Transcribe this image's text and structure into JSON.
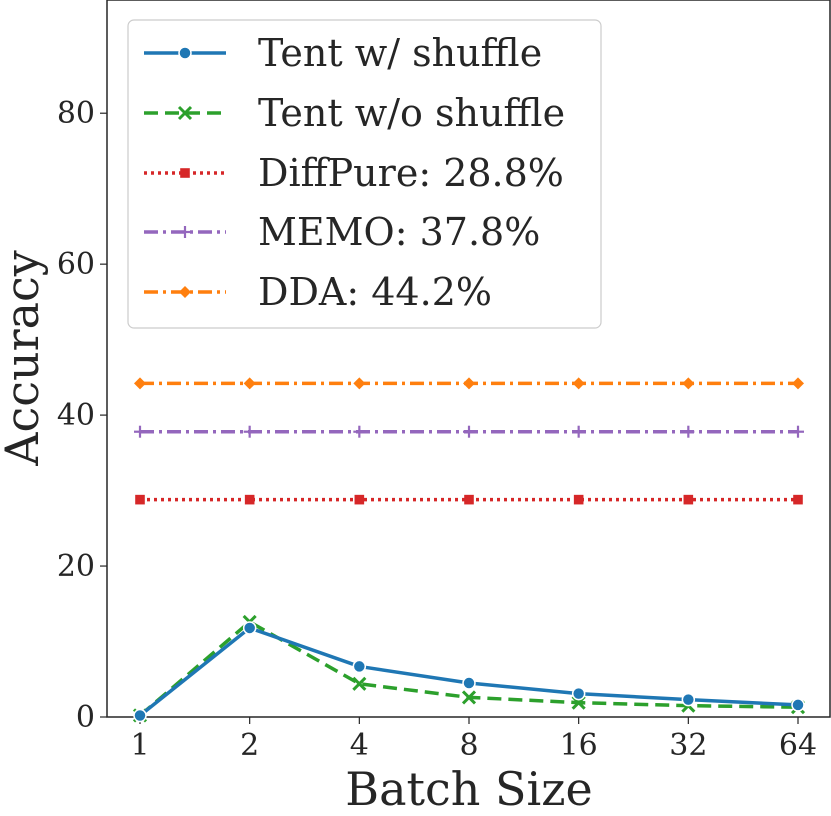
{
  "chart_data": {
    "type": "line",
    "title": "",
    "xlabel": "Batch Size",
    "ylabel": "Accuracy",
    "categories": [
      "1",
      "2",
      "4",
      "8",
      "16",
      "32",
      "64"
    ],
    "ylim": [
      0,
      95
    ],
    "yticks": [
      "0",
      "20",
      "40",
      "60",
      "80"
    ],
    "ytick_values": [
      0,
      20,
      40,
      60,
      80
    ],
    "grid": false,
    "legend_position": "top-left",
    "series": [
      {
        "name": "Tent w/ shuffle",
        "values": [
          0.2,
          11.8,
          6.7,
          4.5,
          3.1,
          2.3,
          1.6
        ],
        "color": "#1f77b4",
        "dash": "solid",
        "marker": "circle"
      },
      {
        "name": "Tent w/o shuffle",
        "values": [
          0.2,
          12.6,
          4.4,
          2.6,
          1.9,
          1.5,
          1.3
        ],
        "color": "#2ca02c",
        "dash": "dashed",
        "marker": "x"
      },
      {
        "name": "DiffPure: 28.8%",
        "values": [
          28.8,
          28.8,
          28.8,
          28.8,
          28.8,
          28.8,
          28.8
        ],
        "color": "#d62728",
        "dash": "dotted",
        "marker": "square"
      },
      {
        "name": "MEMO: 37.8%",
        "values": [
          37.8,
          37.8,
          37.8,
          37.8,
          37.8,
          37.8,
          37.8
        ],
        "color": "#9467bd",
        "dash": "dashdot",
        "marker": "plus"
      },
      {
        "name": "DDA: 44.2%",
        "values": [
          44.2,
          44.2,
          44.2,
          44.2,
          44.2,
          44.2,
          44.2
        ],
        "color": "#ff7f0e",
        "dash": "dashdot",
        "marker": "diamond"
      }
    ]
  }
}
